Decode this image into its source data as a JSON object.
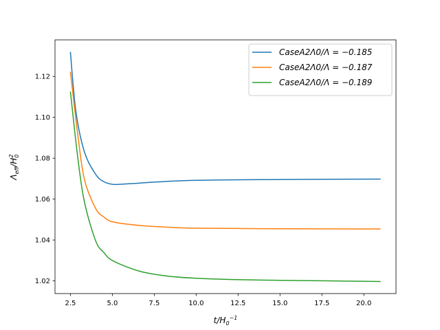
{
  "chart_data": {
    "type": "line",
    "title": "",
    "xlabel": "t/H0^-1",
    "ylabel": "Λeff/H0^2",
    "xlim": [
      1.58,
      21.92
    ],
    "ylim": [
      1.0138,
      1.1379
    ],
    "xticks": [
      2.5,
      5.0,
      7.5,
      10.0,
      12.5,
      15.0,
      17.5,
      20.0
    ],
    "xtick_labels": [
      "2.5",
      "5.0",
      "7.5",
      "10.0",
      "12.5",
      "15.0",
      "17.5",
      "20.0"
    ],
    "yticks": [
      1.02,
      1.04,
      1.06,
      1.08,
      1.1,
      1.12
    ],
    "ytick_labels": [
      "1.02",
      "1.04",
      "1.06",
      "1.08",
      "1.10",
      "1.12"
    ],
    "grid": false,
    "legend_position": "top-right",
    "series": [
      {
        "name": "CaseA2Λ0/Λ = −0.185",
        "color": "#1f77b4",
        "x": [
          2.5,
          2.82,
          3.33,
          4.0,
          4.5,
          5.06,
          5.97,
          7.5,
          10,
          15,
          21
        ],
        "y": [
          1.132,
          1.1033,
          1.0832,
          1.0722,
          1.0685,
          1.0672,
          1.0675,
          1.0683,
          1.0692,
          1.0696,
          1.0698
        ]
      },
      {
        "name": "CaseA2Λ0/Λ = −0.187",
        "color": "#ff7f0e",
        "x": [
          2.5,
          2.93,
          3.33,
          4.0,
          4.5,
          5.06,
          6.64,
          8.5,
          10,
          15,
          21
        ],
        "y": [
          1.1223,
          1.0922,
          1.0698,
          1.0555,
          1.0512,
          1.0488,
          1.0471,
          1.0462,
          1.0458,
          1.0455,
          1.0454
        ]
      },
      {
        "name": "CaseA2Λ0/Λ = −0.189",
        "color": "#2ca02c",
        "x": [
          2.5,
          2.93,
          3.33,
          4.0,
          4.5,
          5.06,
          6.64,
          8.33,
          10,
          12.5,
          15,
          21
        ],
        "y": [
          1.1126,
          1.0809,
          1.0588,
          1.0397,
          1.0338,
          1.0297,
          1.0247,
          1.0223,
          1.0213,
          1.0206,
          1.0203,
          1.0197
        ]
      }
    ]
  }
}
